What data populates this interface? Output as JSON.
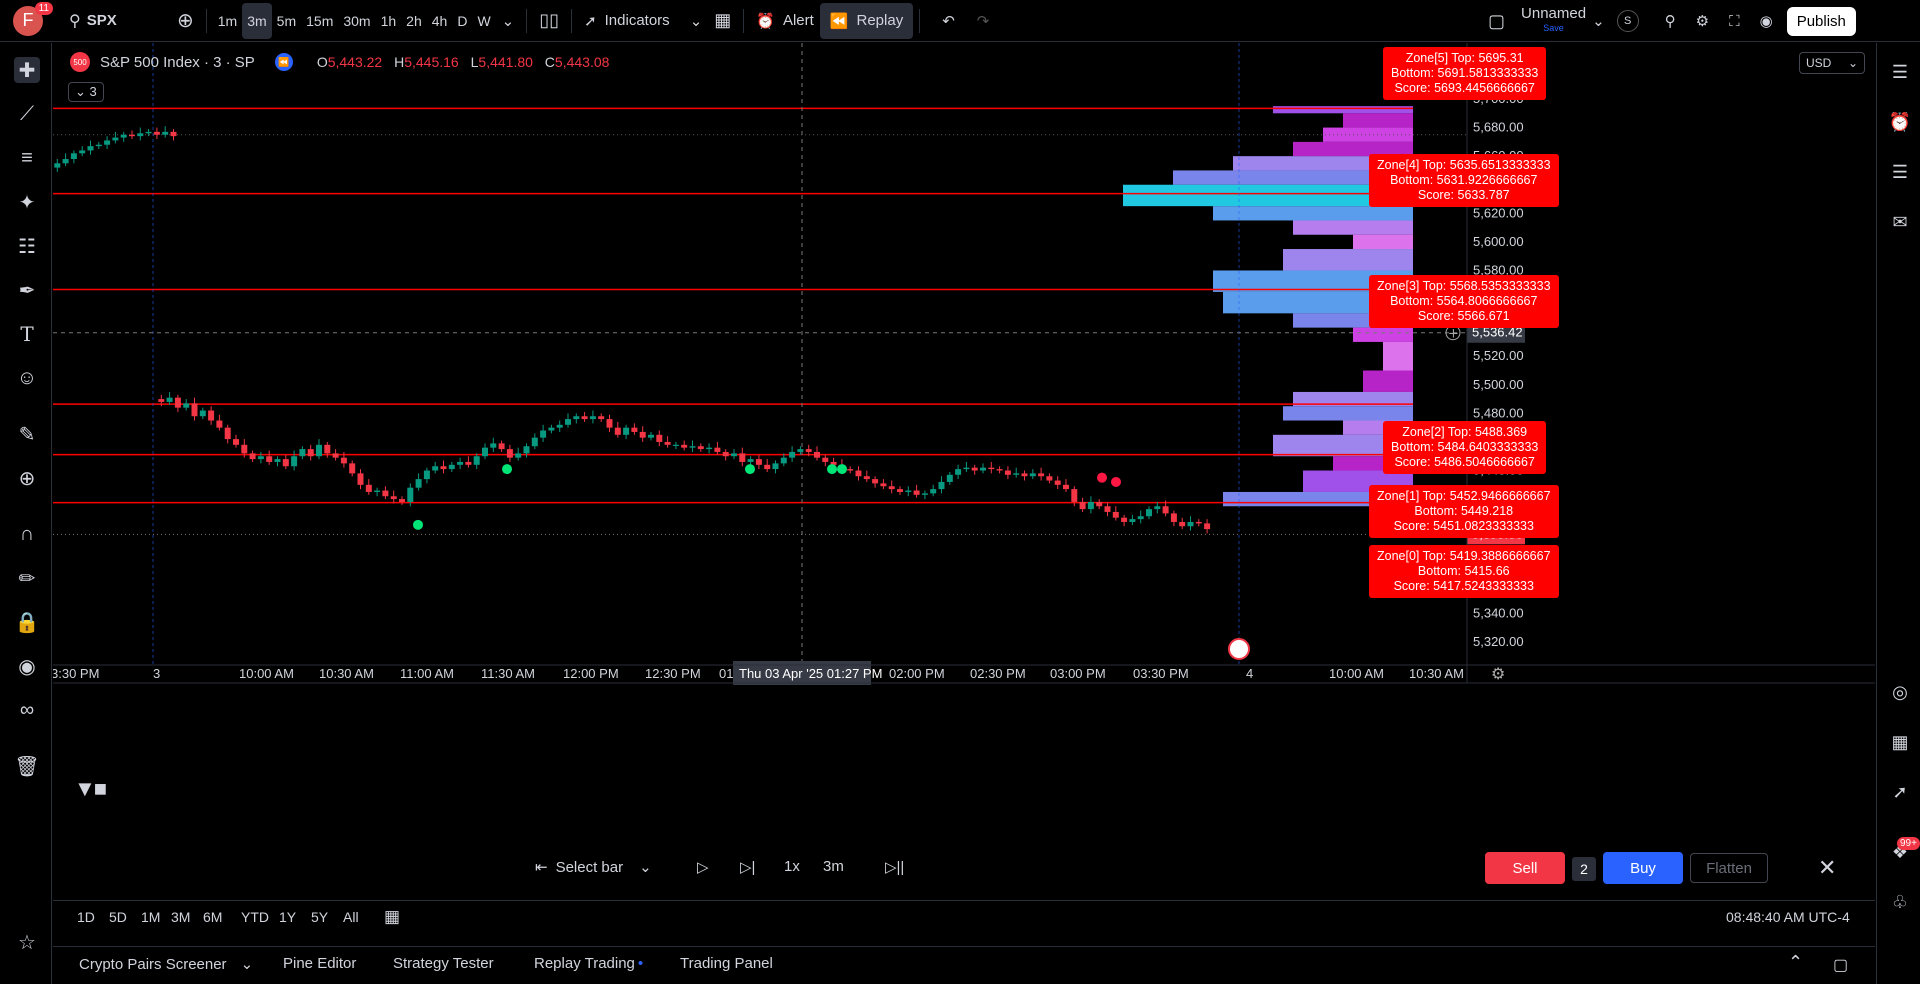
{
  "user": {
    "initial": "F",
    "notifications": "11"
  },
  "topbar": {
    "symbol": "SPX",
    "intervals": [
      "1m",
      "3m",
      "5m",
      "15m",
      "30m",
      "1h",
      "2h",
      "4h",
      "D",
      "W"
    ],
    "active_interval": "3m",
    "indicators_label": "Indicators",
    "alert_label": "Alert",
    "replay_label": "Replay",
    "layout_name": "Unnamed",
    "layout_status": "Save",
    "publish_label": "Publish",
    "s_label": "S"
  },
  "legend": {
    "title": "S&P 500 Index · 3 · SP",
    "open_k": "O",
    "open_v": "5,443.22",
    "high_k": "H",
    "high_v": "5,445.16",
    "low_k": "L",
    "low_v": "5,441.80",
    "close_k": "C",
    "close_v": "5,443.08",
    "collapse_count": "3",
    "logo_text": "500"
  },
  "currency": "USD",
  "price_axis": {
    "ticks": [
      "5,700.00",
      "5,680.00",
      "5,660.00",
      "5,640.00",
      "5,620.00",
      "5,600.00",
      "5,580.00",
      "5,560.00",
      "5,520.00",
      "5,500.00",
      "5,480.00",
      "5,460.00",
      "5,440.00",
      "5,420.00",
      "5,400.00",
      "5,380.00",
      "5,360.00",
      "5,340.00",
      "5,320.00"
    ],
    "crosshair_price": "5,536.42",
    "last_price": "5,395.36"
  },
  "time_axis": {
    "ticks": [
      "3:30 PM",
      "3",
      "10:00 AM",
      "10:30 AM",
      "11:00 AM",
      "11:30 AM",
      "12:00 PM",
      "12:30 PM",
      "01:00",
      "02:00 PM",
      "02:30 PM",
      "03:00 PM",
      "03:30 PM",
      "4",
      "10:00 AM",
      "10:30 AM"
    ],
    "crosshair_time": "Thu 03 Apr '25    01:27 PM"
  },
  "zones": [
    {
      "title": "Zone[5] Top: 5695.31",
      "bottom": "Bottom: 5691.5813333333",
      "score": "Score: 5693.4456666667"
    },
    {
      "title": "Zone[4] Top: 5635.6513333333",
      "bottom": "Bottom: 5631.9226666667",
      "score": "Score: 5633.787"
    },
    {
      "title": "Zone[3] Top: 5568.5353333333",
      "bottom": "Bottom: 5564.8066666667",
      "score": "Score: 5566.671"
    },
    {
      "title": "Zone[2] Top: 5488.369",
      "bottom": "Bottom: 5484.6403333333",
      "score": "Score: 5486.5046666667"
    },
    {
      "title": "Zone[1] Top: 5452.9466666667",
      "bottom": "Bottom: 5449.218",
      "score": "Score: 5451.0823333333"
    },
    {
      "title": "Zone[0] Top: 5419.3886666667",
      "bottom": "Bottom: 5415.66",
      "score": "Score: 5417.5243333333"
    }
  ],
  "replay": {
    "select_bar": "Select bar",
    "speed": "1x",
    "interval": "3m",
    "sell": "Sell",
    "qty": "2",
    "buy": "Buy",
    "flatten": "Flatten"
  },
  "ranges": [
    "1D",
    "5D",
    "1M",
    "3M",
    "6M",
    "YTD",
    "1Y",
    "5Y",
    "All"
  ],
  "clock": "08:48:40 AM UTC-4",
  "bottom_tabs": [
    "Crypto Pairs Screener",
    "Pine Editor",
    "Strategy Tester",
    "Replay Trading",
    "Trading Panel"
  ],
  "colors": {
    "up": "#089981",
    "down": "#f23645",
    "zone": "#ff0000",
    "accent": "#2962ff"
  },
  "notification_count": "99+"
}
